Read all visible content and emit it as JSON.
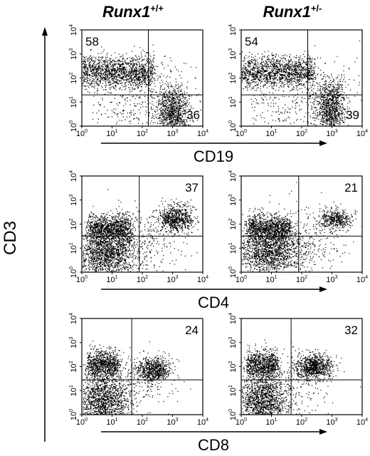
{
  "chart_data": {
    "type": "scatter",
    "y_axis_label": "CD3",
    "columns": [
      {
        "gene": "Runx1",
        "superscript": "+/+"
      },
      {
        "gene": "Runx1",
        "superscript": "+/-"
      }
    ],
    "ticks": [
      {
        "base": "10",
        "exp": "0"
      },
      {
        "base": "10",
        "exp": "1"
      },
      {
        "base": "10",
        "exp": "2"
      },
      {
        "base": "10",
        "exp": "3"
      },
      {
        "base": "10",
        "exp": "4"
      }
    ],
    "xlim": [
      0,
      4
    ],
    "ylim": [
      0,
      4
    ],
    "scale": "log",
    "rows": [
      {
        "x_label": "CD19",
        "panels": [
          {
            "gate": [
              2.2,
              1.3
            ],
            "labels": [
              {
                "text": "58",
                "corner": "top-left"
              },
              {
                "text": "36",
                "corner": "bottom-right"
              }
            ],
            "populations": [
              {
                "cx": 1.0,
                "cy": 2.25,
                "sx": 1.7,
                "sy": 0.35,
                "n": 1800,
                "shape": "box"
              },
              {
                "cx": 3.0,
                "cy": 0.6,
                "sx": 0.28,
                "sy": 0.55,
                "n": 1000,
                "shape": "gauss"
              },
              {
                "cx": 2.6,
                "cy": 1.6,
                "sx": 0.7,
                "sy": 0.7,
                "n": 120,
                "shape": "gauss"
              },
              {
                "cx": 1.5,
                "cy": 0.7,
                "sx": 1.2,
                "sy": 0.6,
                "n": 140,
                "shape": "uniform"
              }
            ]
          },
          {
            "gate": [
              2.2,
              1.3
            ],
            "labels": [
              {
                "text": "54",
                "corner": "top-left"
              },
              {
                "text": "39",
                "corner": "bottom-right"
              }
            ],
            "populations": [
              {
                "cx": 1.0,
                "cy": 2.25,
                "sx": 1.7,
                "sy": 0.35,
                "n": 1700,
                "shape": "box"
              },
              {
                "cx": 2.95,
                "cy": 0.7,
                "sx": 0.25,
                "sy": 0.6,
                "n": 1050,
                "shape": "gauss"
              },
              {
                "cx": 2.6,
                "cy": 1.8,
                "sx": 0.7,
                "sy": 0.6,
                "n": 180,
                "shape": "gauss"
              },
              {
                "cx": 1.5,
                "cy": 0.7,
                "sx": 1.2,
                "sy": 0.6,
                "n": 140,
                "shape": "uniform"
              }
            ]
          }
        ]
      },
      {
        "x_label": "CD4",
        "panels": [
          {
            "gate": [
              1.9,
              1.5
            ],
            "labels": [
              {
                "text": "37",
                "corner": "top-right"
              }
            ],
            "populations": [
              {
                "cx": 0.9,
                "cy": 1.8,
                "sx": 0.85,
                "sy": 0.3,
                "n": 1200,
                "shape": "box"
              },
              {
                "cx": 3.1,
                "cy": 2.25,
                "sx": 0.3,
                "sy": 0.28,
                "n": 750,
                "shape": "gauss"
              },
              {
                "cx": 0.8,
                "cy": 0.7,
                "sx": 0.5,
                "sy": 0.45,
                "n": 1300,
                "shape": "gauss"
              },
              {
                "cx": 1.6,
                "cy": 1.2,
                "sx": 0.8,
                "sy": 0.7,
                "n": 450,
                "shape": "gauss"
              }
            ]
          },
          {
            "gate": [
              1.9,
              1.5
            ],
            "labels": [
              {
                "text": "21",
                "corner": "top-right"
              }
            ],
            "populations": [
              {
                "cx": 0.9,
                "cy": 1.8,
                "sx": 0.85,
                "sy": 0.3,
                "n": 1200,
                "shape": "box"
              },
              {
                "cx": 3.1,
                "cy": 2.2,
                "sx": 0.28,
                "sy": 0.22,
                "n": 450,
                "shape": "gauss"
              },
              {
                "cx": 0.9,
                "cy": 0.8,
                "sx": 0.55,
                "sy": 0.45,
                "n": 1300,
                "shape": "gauss"
              },
              {
                "cx": 1.7,
                "cy": 1.3,
                "sx": 0.8,
                "sy": 0.7,
                "n": 450,
                "shape": "gauss"
              }
            ]
          }
        ]
      },
      {
        "x_label": "CD8",
        "panels": [
          {
            "gate": [
              1.65,
              1.45
            ],
            "labels": [
              {
                "text": "24",
                "corner": "top-right"
              }
            ],
            "populations": [
              {
                "cx": 0.7,
                "cy": 2.1,
                "sx": 0.6,
                "sy": 0.3,
                "n": 900,
                "shape": "box"
              },
              {
                "cx": 2.35,
                "cy": 1.9,
                "sx": 0.28,
                "sy": 0.25,
                "n": 700,
                "shape": "gauss"
              },
              {
                "cx": 0.7,
                "cy": 0.6,
                "sx": 0.4,
                "sy": 0.5,
                "n": 1300,
                "shape": "gauss"
              },
              {
                "cx": 1.4,
                "cy": 1.2,
                "sx": 0.8,
                "sy": 0.7,
                "n": 350,
                "shape": "gauss"
              }
            ]
          },
          {
            "gate": [
              1.65,
              1.45
            ],
            "labels": [
              {
                "text": "32",
                "corner": "top-right"
              }
            ],
            "populations": [
              {
                "cx": 0.7,
                "cy": 2.1,
                "sx": 0.6,
                "sy": 0.3,
                "n": 900,
                "shape": "box"
              },
              {
                "cx": 2.4,
                "cy": 2.0,
                "sx": 0.3,
                "sy": 0.25,
                "n": 850,
                "shape": "gauss"
              },
              {
                "cx": 0.7,
                "cy": 0.6,
                "sx": 0.4,
                "sy": 0.5,
                "n": 1300,
                "shape": "gauss"
              },
              {
                "cx": 1.4,
                "cy": 1.3,
                "sx": 0.8,
                "sy": 0.7,
                "n": 400,
                "shape": "gauss"
              }
            ]
          }
        ]
      }
    ]
  }
}
